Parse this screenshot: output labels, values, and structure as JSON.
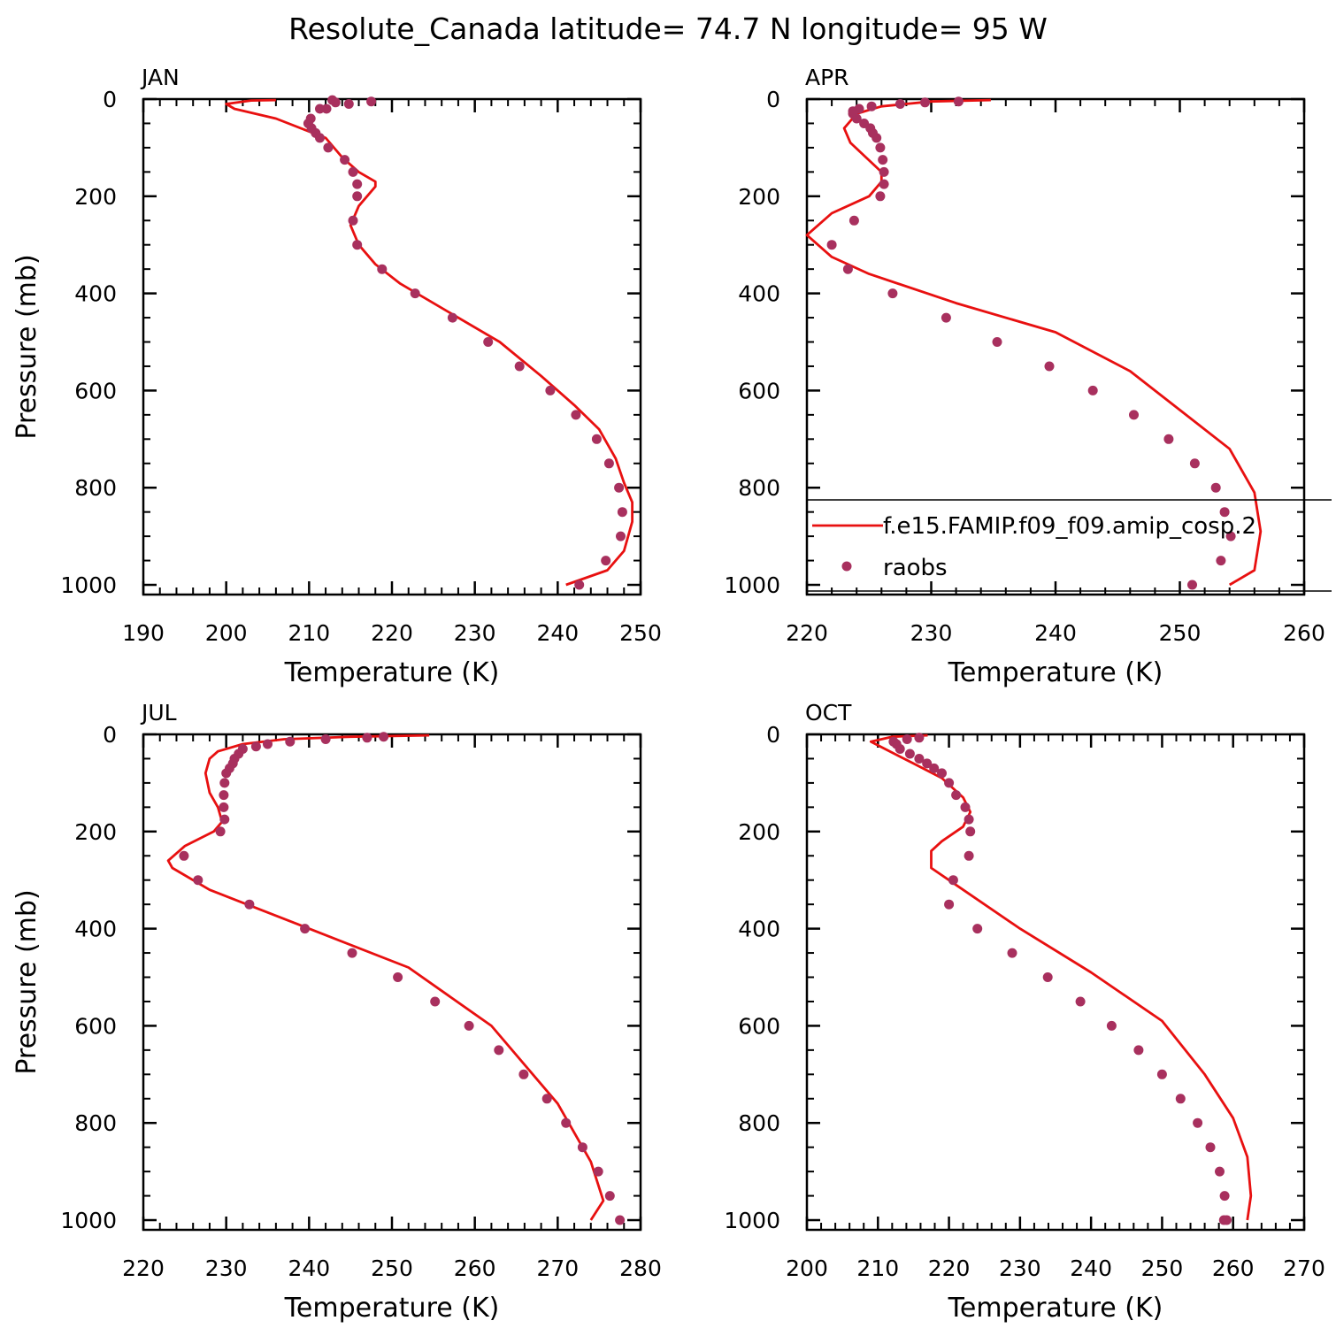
{
  "title": "Resolute_Canada  latitude= 74.7 N longitude= 95 W",
  "colors": {
    "model": "#e81010",
    "obs": "#a8305e",
    "axes": "#000000"
  },
  "legend": {
    "model_label": "f.e15.FAMIP.f09_f09.amip_cosp.2",
    "obs_label": "raobs"
  },
  "chart_data": [
    {
      "type": "line",
      "panel_label": "JAN",
      "xlabel": "Temperature (K)",
      "ylabel": "Pressure (mb)",
      "xlim": [
        190,
        250
      ],
      "xticks": [
        "190",
        "200",
        "210",
        "220",
        "230",
        "240",
        "250"
      ],
      "ylim": [
        1020,
        0
      ],
      "yticks": [
        "0",
        "200",
        "400",
        "600",
        "800",
        "1000"
      ],
      "series": [
        {
          "name": "f.e15.FAMIP.f09_f09.amip_cosp.2",
          "kind": "line",
          "x": [
            206,
            203,
            200,
            201,
            206,
            212,
            214,
            216,
            218,
            218,
            216,
            215,
            216,
            218,
            221,
            227,
            233,
            238,
            242,
            245,
            247,
            248,
            249,
            249,
            248,
            246,
            241
          ],
          "y": [
            2,
            3,
            10,
            20,
            40,
            80,
            120,
            150,
            170,
            180,
            220,
            260,
            300,
            340,
            380,
            440,
            500,
            570,
            630,
            680,
            740,
            790,
            830,
            870,
            930,
            970,
            1000
          ]
        },
        {
          "name": "raobs",
          "kind": "scatter",
          "x": [
            217.5,
            214.8,
            213.2,
            212.8,
            212.1,
            211.3,
            210.2,
            209.9,
            210.3,
            210.8,
            211.3,
            212.3,
            214.3,
            215.3,
            215.8,
            215.8,
            215.3,
            215.8,
            218.8,
            222.8,
            227.3,
            231.6,
            235.4,
            239.1,
            242.2,
            244.7,
            246.2,
            247.4,
            247.8,
            247.6,
            245.8,
            242.6
          ],
          "y": [
            5,
            10,
            7,
            2,
            20,
            20,
            40,
            50,
            60,
            70,
            80,
            100,
            125,
            150,
            175,
            200,
            250,
            300,
            350,
            400,
            450,
            500,
            550,
            600,
            650,
            700,
            750,
            800,
            850,
            900,
            950,
            1000
          ]
        }
      ]
    },
    {
      "type": "line",
      "panel_label": "APR",
      "xlabel": "Temperature (K)",
      "ylabel": "",
      "xlim": [
        220,
        260
      ],
      "xticks": [
        "220",
        "230",
        "240",
        "250",
        "260"
      ],
      "ylim": [
        1020,
        0
      ],
      "yticks": [
        "0",
        "200",
        "400",
        "600",
        "800",
        "1000"
      ],
      "legend_position": "lower-right",
      "series": [
        {
          "name": "f.e15.FAMIP.f09_f09.amip_cosp.2",
          "kind": "line",
          "x": [
            234.8,
            230,
            226,
            224,
            223,
            223.5,
            226,
            226,
            225,
            222,
            220,
            222,
            225,
            232,
            240,
            246,
            250,
            254,
            256,
            256.5,
            256,
            254
          ],
          "y": [
            2,
            5,
            15,
            30,
            60,
            90,
            150,
            170,
            200,
            235,
            280,
            325,
            360,
            420,
            480,
            560,
            640,
            720,
            810,
            890,
            970,
            1000
          ]
        },
        {
          "name": "raobs",
          "kind": "scatter",
          "x": [
            232.2,
            229.5,
            227.5,
            225.2,
            224.2,
            223.7,
            223.7,
            224.0,
            224.6,
            225.1,
            225.3,
            225.6,
            225.9,
            226.1,
            226.2,
            226.2,
            225.9,
            223.8,
            222.0,
            223.3,
            226.9,
            231.2,
            235.3,
            239.5,
            243.0,
            246.3,
            249.1,
            251.2,
            252.9,
            253.6,
            254.1,
            253.3,
            251.0
          ],
          "y": [
            5,
            7,
            10,
            15,
            20,
            25,
            30,
            40,
            50,
            60,
            70,
            80,
            100,
            125,
            150,
            175,
            200,
            250,
            300,
            350,
            400,
            450,
            500,
            550,
            600,
            650,
            700,
            750,
            800,
            850,
            900,
            950,
            1000
          ]
        }
      ]
    },
    {
      "type": "line",
      "panel_label": "JUL",
      "xlabel": "Temperature (K)",
      "ylabel": "Pressure (mb)",
      "xlim": [
        220,
        280
      ],
      "xticks": [
        "220",
        "230",
        "240",
        "250",
        "260",
        "270",
        "280"
      ],
      "ylim": [
        1020,
        0
      ],
      "yticks": [
        "0",
        "200",
        "400",
        "600",
        "800",
        "1000"
      ],
      "series": [
        {
          "name": "f.e15.FAMIP.f09_f09.amip_cosp.2",
          "kind": "line",
          "x": [
            254.5,
            245,
            237,
            232,
            229,
            228,
            227.5,
            228,
            229,
            229.5,
            228.5,
            225,
            223,
            223.5,
            228,
            240,
            252,
            262,
            270,
            274,
            275.5,
            274
          ],
          "y": [
            2,
            5,
            10,
            20,
            35,
            50,
            80,
            120,
            150,
            180,
            200,
            230,
            260,
            275,
            320,
            400,
            480,
            600,
            760,
            880,
            960,
            1000
          ]
        },
        {
          "name": "raobs",
          "kind": "scatter",
          "x": [
            249.0,
            247.0,
            242.0,
            237.7,
            235.0,
            233.6,
            232.0,
            231.5,
            231.0,
            230.8,
            230.4,
            230.0,
            229.8,
            229.7,
            229.7,
            229.8,
            229.3,
            224.9,
            226.6,
            232.8,
            239.5,
            245.2,
            250.7,
            255.2,
            259.3,
            262.9,
            265.9,
            268.7,
            271.0,
            273.0,
            274.9,
            276.3,
            277.5
          ],
          "y": [
            5,
            7,
            10,
            15,
            20,
            25,
            30,
            40,
            50,
            60,
            70,
            80,
            100,
            125,
            150,
            175,
            200,
            250,
            300,
            350,
            400,
            450,
            500,
            550,
            600,
            650,
            700,
            750,
            800,
            850,
            900,
            950,
            1000
          ]
        }
      ]
    },
    {
      "type": "line",
      "panel_label": "OCT",
      "xlabel": "Temperature (K)",
      "ylabel": "",
      "xlim": [
        200,
        270
      ],
      "xticks": [
        "200",
        "210",
        "220",
        "230",
        "240",
        "250",
        "260",
        "270"
      ],
      "ylim": [
        1020,
        0
      ],
      "yticks": [
        "0",
        "200",
        "400",
        "600",
        "800",
        "1000"
      ],
      "series": [
        {
          "name": "f.e15.FAMIP.f09_f09.amip_cosp.2",
          "kind": "line",
          "x": [
            217,
            212,
            209,
            211,
            215,
            219,
            222,
            223,
            222,
            219,
            217.5,
            217.5,
            222,
            230,
            240,
            250,
            256,
            260,
            262,
            262.5,
            262
          ],
          "y": [
            2,
            5,
            15,
            30,
            60,
            90,
            130,
            160,
            190,
            220,
            240,
            275,
            320,
            400,
            490,
            590,
            700,
            790,
            870,
            950,
            1000
          ]
        },
        {
          "name": "raobs",
          "kind": "scatter",
          "x": [
            215.8,
            214.1,
            212.2,
            212.6,
            213.1,
            214.5,
            215.8,
            216.9,
            217.9,
            219.0,
            220.0,
            221.0,
            222.3,
            222.8,
            223.0,
            222.8,
            220.6,
            220.0,
            224.0,
            228.9,
            233.9,
            238.5,
            242.9,
            246.7,
            250.0,
            252.6,
            255.0,
            256.8,
            258.1,
            258.8,
            259.1,
            258.7
          ],
          "y": [
            7,
            10,
            15,
            20,
            30,
            40,
            50,
            60,
            70,
            80,
            100,
            125,
            150,
            175,
            200,
            250,
            300,
            350,
            400,
            450,
            500,
            550,
            600,
            650,
            700,
            750,
            800,
            850,
            900,
            950,
            1000,
            1000
          ]
        }
      ]
    }
  ]
}
